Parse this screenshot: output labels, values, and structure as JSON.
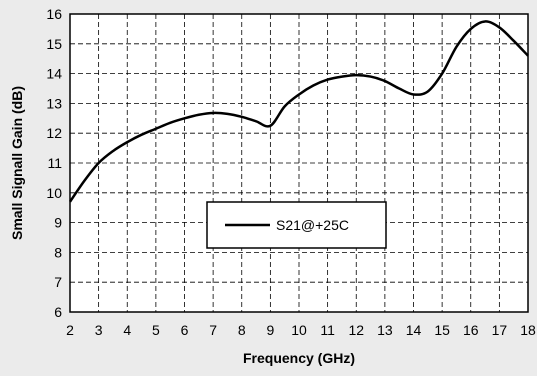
{
  "chart_data": {
    "type": "line",
    "title": "",
    "xlabel": "Frequency (GHz)",
    "ylabel": "Small Signall Gain (dB)",
    "xlim": [
      2,
      18
    ],
    "ylim": [
      6,
      16
    ],
    "xticks": [
      "2",
      "3",
      "4",
      "5",
      "6",
      "7",
      "8",
      "9",
      "10",
      "11",
      "12",
      "13",
      "14",
      "15",
      "16",
      "17",
      "18"
    ],
    "yticks": [
      "6",
      "7",
      "8",
      "9",
      "10",
      "11",
      "12",
      "13",
      "14",
      "15",
      "16"
    ],
    "grid": true,
    "legend_position": "center",
    "series": [
      {
        "name": "S21@+25C",
        "color": "#000000",
        "x": [
          2,
          2.5,
          3,
          3.5,
          4,
          4.5,
          5,
          5.5,
          6,
          6.5,
          7,
          7.5,
          8,
          8.5,
          9,
          9.5,
          10,
          10.5,
          11,
          11.5,
          12,
          12.5,
          13,
          13.5,
          14,
          14.5,
          15,
          15.5,
          16,
          16.5,
          17,
          17.5,
          18
        ],
        "y": [
          9.7,
          10.4,
          11.0,
          11.4,
          11.7,
          11.95,
          12.15,
          12.35,
          12.5,
          12.62,
          12.68,
          12.65,
          12.55,
          12.4,
          12.25,
          12.9,
          13.3,
          13.6,
          13.8,
          13.9,
          13.95,
          13.9,
          13.75,
          13.5,
          13.3,
          13.4,
          14.0,
          14.9,
          15.5,
          15.75,
          15.55,
          15.1,
          14.6
        ]
      }
    ]
  }
}
